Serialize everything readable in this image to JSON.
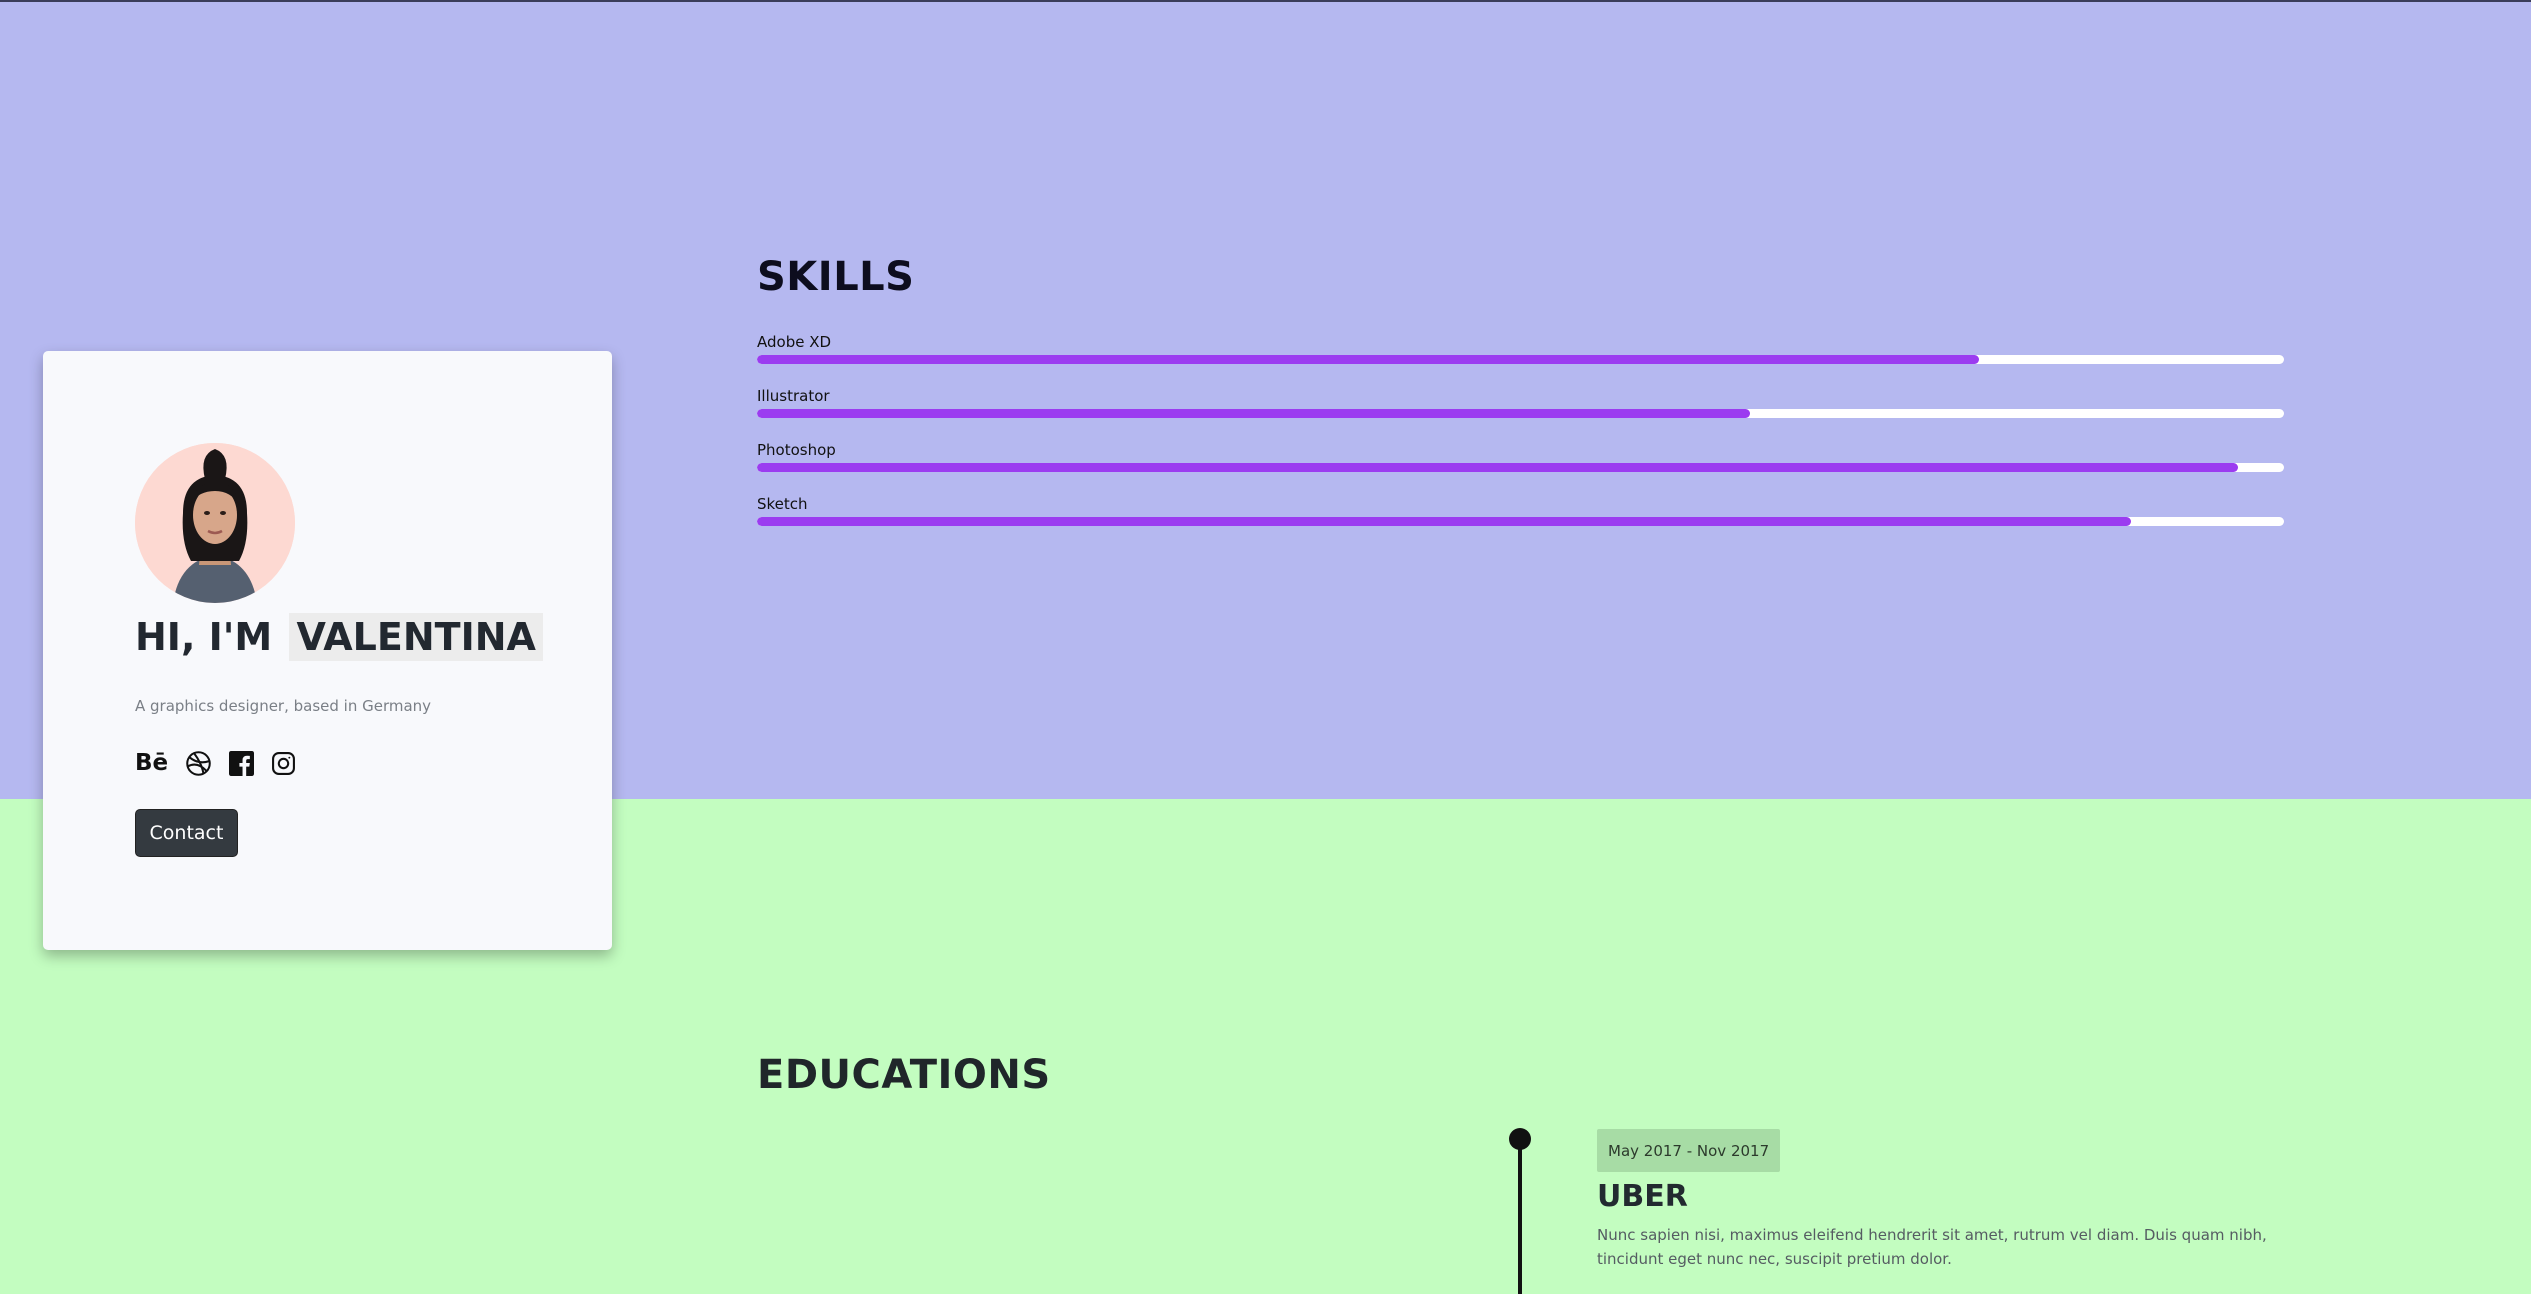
{
  "profile": {
    "greeting": "HI, I'M",
    "name": "VALENTINA",
    "tagline": "A graphics designer, based in Germany",
    "avatar_icon": "portrait-avatar",
    "contact_label": "Contact",
    "socials": [
      {
        "name": "behance",
        "glyph": "Bē"
      },
      {
        "name": "dribbble"
      },
      {
        "name": "facebook"
      },
      {
        "name": "instagram"
      }
    ]
  },
  "skills": {
    "title": "SKILLS",
    "items": [
      {
        "label": "Adobe XD",
        "level": 0.8
      },
      {
        "label": "Illustrator",
        "level": 0.65
      },
      {
        "label": "Photoshop",
        "level": 0.97
      },
      {
        "label": "Sketch",
        "level": 0.9
      }
    ]
  },
  "education": {
    "title": "EDUCATIONS",
    "items": [
      {
        "date": "May 2017 - Nov 2017",
        "company": "UBER",
        "description": "Nunc sapien nisi, maximus eleifend hendrerit sit amet, rutrum vel diam. Duis quam nibh, tincidunt eget nunc nec, suscipit pretium dolor."
      }
    ]
  },
  "colors": {
    "skills_bg": "#b5b8f0",
    "education_bg": "#c3fdc0",
    "skill_fill": "#9b3cf0",
    "button_bg": "#343a40"
  }
}
